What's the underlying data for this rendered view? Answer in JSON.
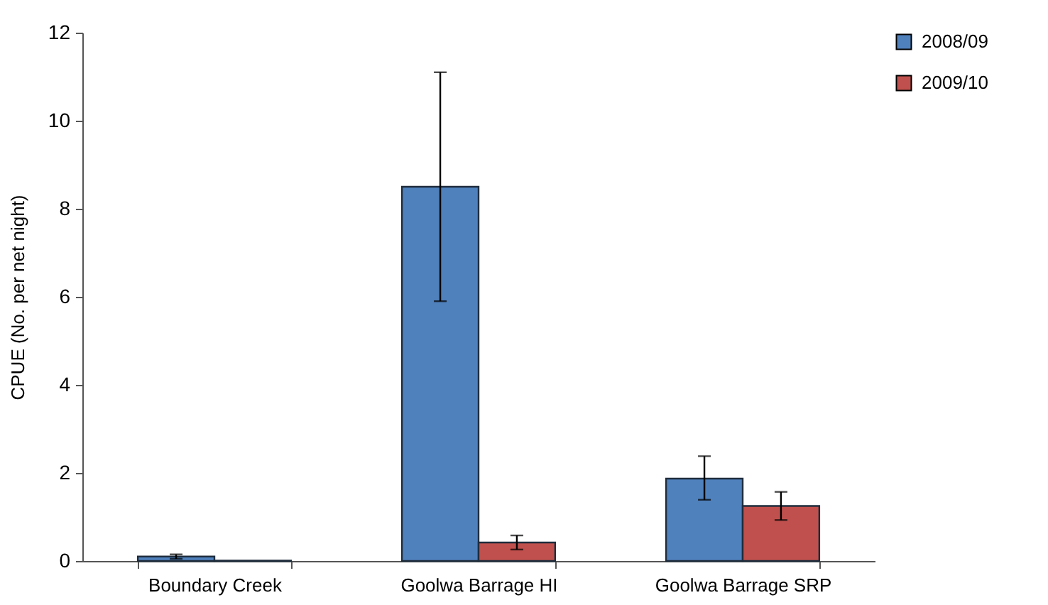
{
  "chart_data": {
    "type": "bar",
    "ylabel": "CPUE (No. per net night)",
    "categories": [
      "Boundary Creek",
      "Goolwa Barrage HI",
      "Goolwa Barrage SRP"
    ],
    "series": [
      {
        "name": "2008/09",
        "color": "#4f81bd",
        "values": [
          0.1,
          8.5,
          1.87
        ],
        "errors": [
          0.05,
          [
            5.9,
            11.1
          ],
          [
            1.39,
            2.38
          ]
        ]
      },
      {
        "name": "2009/10",
        "color": "#c0504d",
        "values": [
          0.01,
          0.42,
          1.25
        ],
        "errors": [
          null,
          [
            0.26,
            0.58
          ],
          [
            0.93,
            1.57
          ]
        ]
      }
    ],
    "ylim": [
      0,
      12
    ],
    "yticks": [
      0,
      2,
      4,
      6,
      8,
      10,
      12
    ],
    "grid": false,
    "legend": "right"
  }
}
